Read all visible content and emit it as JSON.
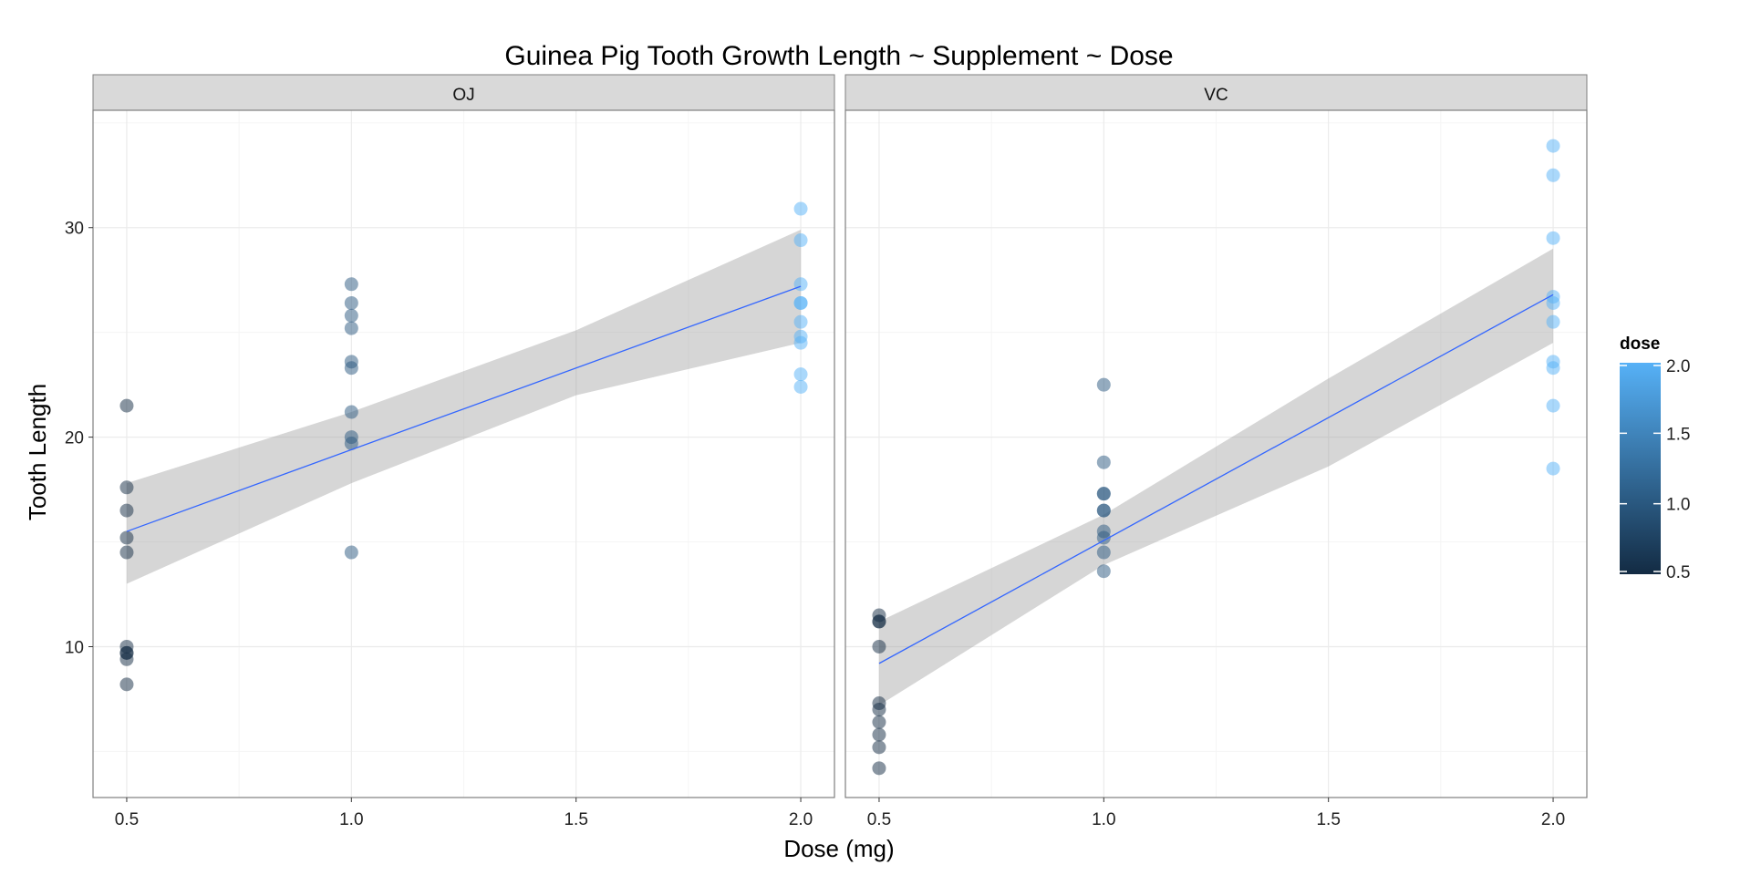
{
  "chart_data": {
    "type": "scatter",
    "title": "Guinea Pig Tooth Growth Length ~ Supplement ~ Dose",
    "xlabel": "Dose (mg)",
    "ylabel": "Tooth Length",
    "xlim": [
      0.425,
      2.075
    ],
    "ylim": [
      2.8,
      35.6
    ],
    "x_ticks": [
      "0.5",
      "1.0",
      "1.5",
      "2.0"
    ],
    "y_ticks": [
      "10",
      "20",
      "30"
    ],
    "grid": true,
    "facets": [
      {
        "label": "OJ",
        "points": [
          {
            "x": 0.5,
            "y": 15.2
          },
          {
            "x": 0.5,
            "y": 21.5
          },
          {
            "x": 0.5,
            "y": 17.6
          },
          {
            "x": 0.5,
            "y": 9.7
          },
          {
            "x": 0.5,
            "y": 14.5
          },
          {
            "x": 0.5,
            "y": 10.0
          },
          {
            "x": 0.5,
            "y": 8.2
          },
          {
            "x": 0.5,
            "y": 9.4
          },
          {
            "x": 0.5,
            "y": 16.5
          },
          {
            "x": 0.5,
            "y": 9.7
          },
          {
            "x": 1.0,
            "y": 19.7
          },
          {
            "x": 1.0,
            "y": 23.3
          },
          {
            "x": 1.0,
            "y": 23.6
          },
          {
            "x": 1.0,
            "y": 26.4
          },
          {
            "x": 1.0,
            "y": 20.0
          },
          {
            "x": 1.0,
            "y": 25.2
          },
          {
            "x": 1.0,
            "y": 25.8
          },
          {
            "x": 1.0,
            "y": 21.2
          },
          {
            "x": 1.0,
            "y": 14.5
          },
          {
            "x": 1.0,
            "y": 27.3
          },
          {
            "x": 2.0,
            "y": 25.5
          },
          {
            "x": 2.0,
            "y": 26.4
          },
          {
            "x": 2.0,
            "y": 22.4
          },
          {
            "x": 2.0,
            "y": 24.5
          },
          {
            "x": 2.0,
            "y": 24.8
          },
          {
            "x": 2.0,
            "y": 30.9
          },
          {
            "x": 2.0,
            "y": 26.4
          },
          {
            "x": 2.0,
            "y": 27.3
          },
          {
            "x": 2.0,
            "y": 29.4
          },
          {
            "x": 2.0,
            "y": 23.0
          }
        ],
        "fit": {
          "x0": 0.5,
          "y0": 15.5,
          "x1": 2.0,
          "y1": 27.2
        },
        "ribbon": {
          "x": [
            0.5,
            1.0,
            1.5,
            2.0
          ],
          "lower": [
            13.0,
            17.8,
            22.0,
            24.5
          ],
          "upper": [
            17.8,
            21.2,
            25.1,
            29.9
          ]
        }
      },
      {
        "label": "VC",
        "points": [
          {
            "x": 0.5,
            "y": 4.2
          },
          {
            "x": 0.5,
            "y": 11.5
          },
          {
            "x": 0.5,
            "y": 7.3
          },
          {
            "x": 0.5,
            "y": 5.8
          },
          {
            "x": 0.5,
            "y": 6.4
          },
          {
            "x": 0.5,
            "y": 10.0
          },
          {
            "x": 0.5,
            "y": 11.2
          },
          {
            "x": 0.5,
            "y": 11.2
          },
          {
            "x": 0.5,
            "y": 5.2
          },
          {
            "x": 0.5,
            "y": 7.0
          },
          {
            "x": 1.0,
            "y": 16.5
          },
          {
            "x": 1.0,
            "y": 16.5
          },
          {
            "x": 1.0,
            "y": 15.2
          },
          {
            "x": 1.0,
            "y": 17.3
          },
          {
            "x": 1.0,
            "y": 22.5
          },
          {
            "x": 1.0,
            "y": 17.3
          },
          {
            "x": 1.0,
            "y": 13.6
          },
          {
            "x": 1.0,
            "y": 14.5
          },
          {
            "x": 1.0,
            "y": 18.8
          },
          {
            "x": 1.0,
            "y": 15.5
          },
          {
            "x": 2.0,
            "y": 23.6
          },
          {
            "x": 2.0,
            "y": 18.5
          },
          {
            "x": 2.0,
            "y": 33.9
          },
          {
            "x": 2.0,
            "y": 25.5
          },
          {
            "x": 2.0,
            "y": 26.4
          },
          {
            "x": 2.0,
            "y": 32.5
          },
          {
            "x": 2.0,
            "y": 26.7
          },
          {
            "x": 2.0,
            "y": 21.5
          },
          {
            "x": 2.0,
            "y": 23.3
          },
          {
            "x": 2.0,
            "y": 29.5
          }
        ],
        "fit": {
          "x0": 0.5,
          "y0": 9.2,
          "x1": 2.0,
          "y1": 26.8
        },
        "ribbon": {
          "x": [
            0.5,
            1.0,
            1.5,
            2.0
          ],
          "lower": [
            7.2,
            13.9,
            18.6,
            24.5
          ],
          "upper": [
            11.2,
            16.3,
            22.8,
            29.0
          ]
        }
      }
    ],
    "colorbar": {
      "title": "dose",
      "min": 0.5,
      "max": 2.0,
      "ticks": [
        "0.5",
        "1.0",
        "1.5",
        "2.0"
      ],
      "low_color": "#132b43",
      "high_color": "#56b1f7"
    },
    "colors": {
      "fit_line": "#3366ff",
      "ribbon": "#999999",
      "panel_border": "#7f7f7f",
      "strip_fill": "#d9d9d9",
      "grid_major": "#ebebeb",
      "grid_minor": "#f5f5f5"
    }
  }
}
